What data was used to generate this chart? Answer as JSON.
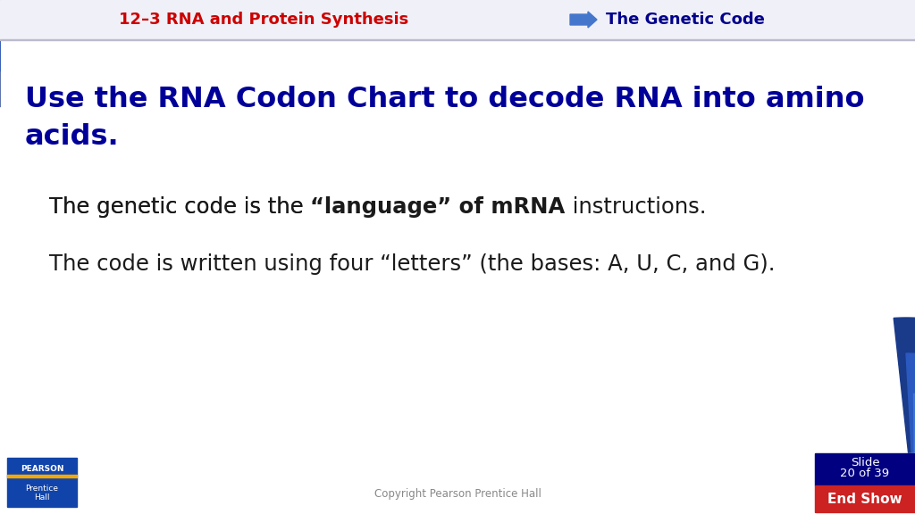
{
  "bg_color": "#ffffff",
  "header_title": "12–3 RNA and Protein Synthesis",
  "header_title_color": "#cc0000",
  "header_right_text": "The Genetic Code",
  "header_right_color": "#00008b",
  "header_arrow_color": "#4477cc",
  "header_bg_color": "#f0f0f8",
  "slide_title_line1": "Use the RNA Codon Chart to decode RNA into amino",
  "slide_title_line2": "acids.",
  "slide_title_color": "#000099",
  "bullet1_plain": "The genetic code is the ",
  "bullet1_bold": "“language” of mRNA",
  "bullet1_end": " instructions.",
  "bullet2": "The code is written using four “letters” (the bases: A, U, C, and G).",
  "body_text_color": "#1a1a1a",
  "footer_copyright": "Copyright Pearson Prentice Hall",
  "footer_end_show": "End Show",
  "footer_slide_bg": "#000080",
  "footer_end_show_bg": "#cc2222",
  "pearson_bg": "#1144aa",
  "blue_dark": "#1a3a8a",
  "blue_mid": "#2a5abf",
  "blue_light": "#4477dd"
}
